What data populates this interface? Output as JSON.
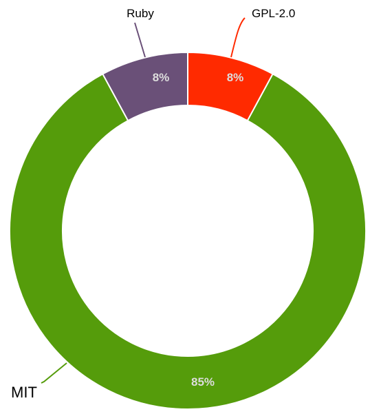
{
  "chart_data": {
    "type": "pie",
    "donut": true,
    "legend": "none",
    "slices": [
      {
        "name": "GPL-2.0",
        "value": 8,
        "label": "8%",
        "color": "#ff2a00"
      },
      {
        "name": "MIT",
        "value": 85,
        "label": "85%",
        "color": "#559c0b"
      },
      {
        "name": "Ruby",
        "value": 8,
        "label": "8%",
        "color": "#6a5078"
      }
    ]
  }
}
